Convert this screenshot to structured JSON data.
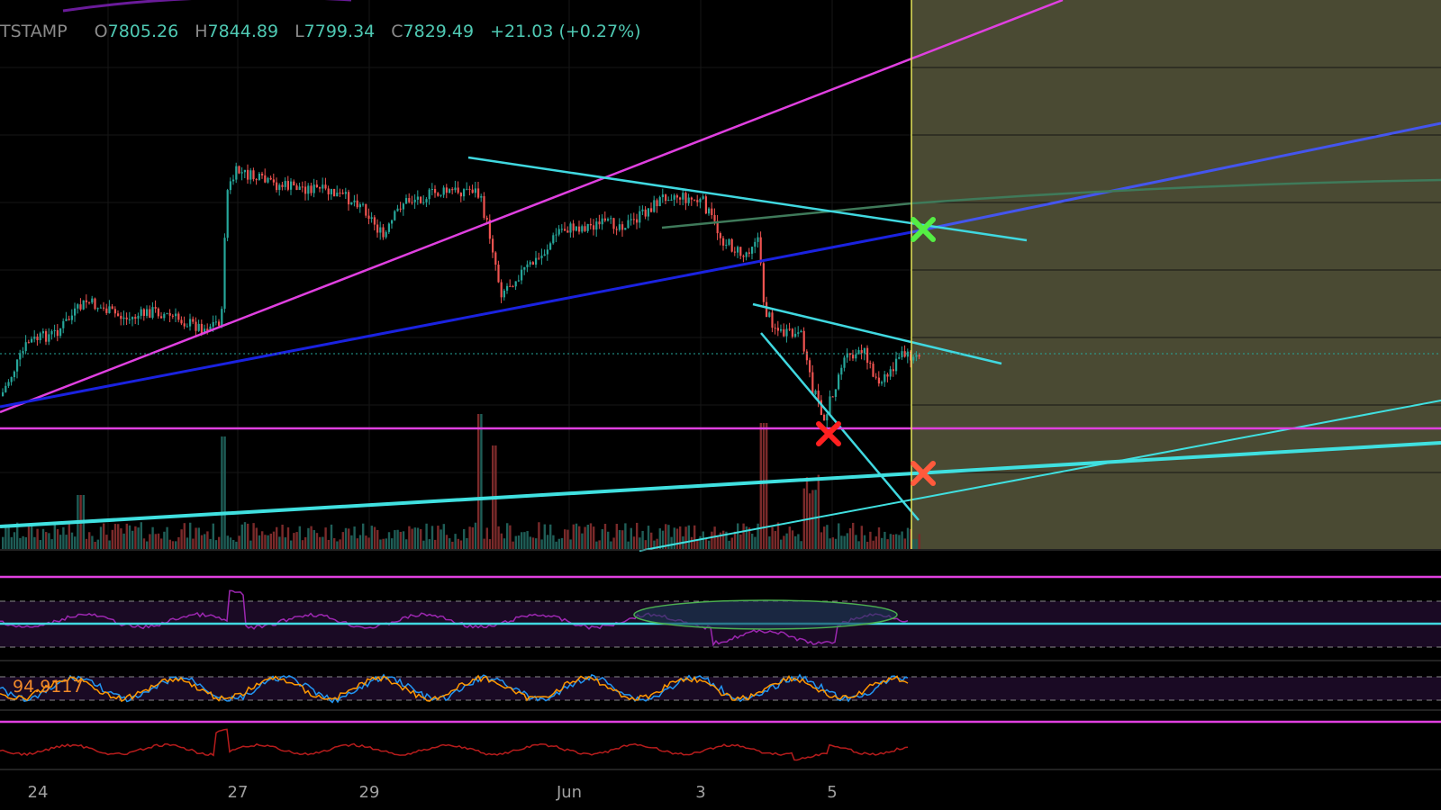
{
  "header": {
    "symbol_fragment": "TSTAMP",
    "open_label": "O",
    "open_value": "7805.26",
    "high_label": "H",
    "high_value": "7844.89",
    "low_label": "L",
    "low_value": "7799.34",
    "close_label": "C",
    "close_value": "7829.49",
    "change": "+21.03 (+0.27%)"
  },
  "indicators": {
    "stoch_value": "94.9117"
  },
  "x_axis": {
    "ticks": [
      "24",
      "27",
      "29",
      "Jun",
      "3",
      "5"
    ]
  },
  "markers": {
    "green_cross": "green-x-icon",
    "red_cross": "red-x-icon",
    "orange_cross": "orange-x-icon"
  },
  "colors": {
    "background": "#000000",
    "up_candle": "#26a69a",
    "down_candle": "#ef5350",
    "projection_zone": "#4a4a33",
    "cursor_line": "#e6e65a",
    "magenta_line": "#e040e0",
    "cyan_line": "#40e0e0",
    "blue_line": "#2233dd",
    "green_line": "#3f7a5a",
    "rsi_line": "#9c27b0",
    "stoch_k": "#2196f3",
    "stoch_d": "#ff9800",
    "bottom_osc": "#b71c1c"
  }
}
